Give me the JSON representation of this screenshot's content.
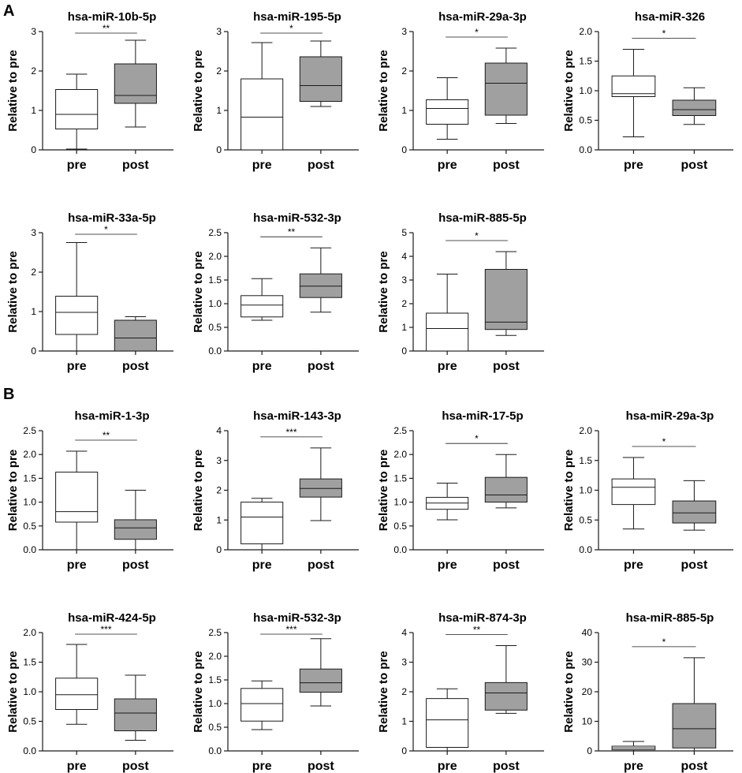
{
  "panels": [
    {
      "label": "A"
    },
    {
      "label": "B"
    }
  ],
  "chart_data": [
    {
      "type": "box",
      "panel": "A",
      "title": "hsa-miR-10b-5p",
      "ylabel": "Relative to pre",
      "categories": [
        "pre",
        "post"
      ],
      "ylim": [
        0,
        3
      ],
      "yticks": [
        "0",
        "1",
        "2",
        "3"
      ],
      "boxes": [
        {
          "name": "pre",
          "min": 0.02,
          "q1": 0.53,
          "median": 0.9,
          "q3": 1.53,
          "max": 1.92
        },
        {
          "name": "post",
          "min": 0.58,
          "q1": 1.18,
          "median": 1.38,
          "q3": 2.18,
          "max": 2.78
        }
      ],
      "significance": "**"
    },
    {
      "type": "box",
      "panel": "A",
      "title": "hsa-miR-195-5p",
      "ylabel": "Relative to pre",
      "categories": [
        "pre",
        "post"
      ],
      "ylim": [
        0,
        3
      ],
      "yticks": [
        "0",
        "1",
        "2",
        "3"
      ],
      "boxes": [
        {
          "name": "pre",
          "min": 0.0,
          "q1": 0.0,
          "median": 0.83,
          "q3": 1.8,
          "max": 2.72
        },
        {
          "name": "post",
          "min": 1.1,
          "q1": 1.23,
          "median": 1.63,
          "q3": 2.36,
          "max": 2.76
        }
      ],
      "significance": "*"
    },
    {
      "type": "box",
      "panel": "A",
      "title": "hsa-miR-29a-3p",
      "ylabel": "Relative to pre",
      "categories": [
        "pre",
        "post"
      ],
      "ylim": [
        0,
        3
      ],
      "yticks": [
        "0",
        "1",
        "2",
        "3"
      ],
      "boxes": [
        {
          "name": "pre",
          "min": 0.27,
          "q1": 0.65,
          "median": 1.05,
          "q3": 1.27,
          "max": 1.83
        },
        {
          "name": "post",
          "min": 0.67,
          "q1": 0.88,
          "median": 1.69,
          "q3": 2.2,
          "max": 2.58
        }
      ],
      "significance": "*"
    },
    {
      "type": "box",
      "panel": "A",
      "title": "hsa-miR-326",
      "ylabel": "Relative to pre",
      "categories": [
        "pre",
        "post"
      ],
      "ylim": [
        0,
        2
      ],
      "yticks": [
        "0.0",
        "0.5",
        "1.0",
        "1.5",
        "2.0"
      ],
      "boxes": [
        {
          "name": "pre",
          "min": 0.22,
          "q1": 0.9,
          "median": 0.95,
          "q3": 1.25,
          "max": 1.7
        },
        {
          "name": "post",
          "min": 0.43,
          "q1": 0.58,
          "median": 0.68,
          "q3": 0.84,
          "max": 1.05
        }
      ],
      "significance": "*"
    },
    {
      "type": "box",
      "panel": "A",
      "title": "hsa-miR-33a-5p",
      "ylabel": "Relative to pre",
      "categories": [
        "pre",
        "post"
      ],
      "ylim": [
        0,
        3
      ],
      "yticks": [
        "0",
        "1",
        "2",
        "3"
      ],
      "boxes": [
        {
          "name": "pre",
          "min": 0.0,
          "q1": 0.42,
          "median": 0.98,
          "q3": 1.39,
          "max": 2.75
        },
        {
          "name": "post",
          "min": 0.0,
          "q1": 0.0,
          "median": 0.33,
          "q3": 0.78,
          "max": 0.87
        }
      ],
      "significance": "*"
    },
    {
      "type": "box",
      "panel": "A",
      "title": "hsa-miR-532-3p",
      "ylabel": "Relative to pre",
      "categories": [
        "pre",
        "post"
      ],
      "ylim": [
        0,
        2.5
      ],
      "yticks": [
        "0.0",
        "0.5",
        "1.0",
        "1.5",
        "2.0",
        "2.5"
      ],
      "boxes": [
        {
          "name": "pre",
          "min": 0.65,
          "q1": 0.72,
          "median": 0.97,
          "q3": 1.17,
          "max": 1.53
        },
        {
          "name": "post",
          "min": 0.82,
          "q1": 1.13,
          "median": 1.37,
          "q3": 1.63,
          "max": 2.18
        }
      ],
      "significance": "**"
    },
    {
      "type": "box",
      "panel": "A",
      "title": "hsa-miR-885-5p",
      "ylabel": "Relative to pre",
      "categories": [
        "pre",
        "post"
      ],
      "ylim": [
        0,
        5
      ],
      "yticks": [
        "0",
        "1",
        "2",
        "3",
        "4",
        "5"
      ],
      "boxes": [
        {
          "name": "pre",
          "min": 0.0,
          "q1": 0.0,
          "median": 0.95,
          "q3": 1.6,
          "max": 3.25
        },
        {
          "name": "post",
          "min": 0.66,
          "q1": 0.91,
          "median": 1.22,
          "q3": 3.45,
          "max": 4.2
        }
      ],
      "significance": "*"
    },
    {
      "type": "box",
      "panel": "B",
      "title": "hsa-miR-1-3p",
      "ylabel": "Relative to pre",
      "categories": [
        "pre",
        "post"
      ],
      "ylim": [
        0,
        2.5
      ],
      "yticks": [
        "0.0",
        "0.5",
        "1.0",
        "1.5",
        "2.0",
        "2.5"
      ],
      "boxes": [
        {
          "name": "pre",
          "min": 0.0,
          "q1": 0.58,
          "median": 0.8,
          "q3": 1.63,
          "max": 2.07
        },
        {
          "name": "post",
          "min": 0.0,
          "q1": 0.22,
          "median": 0.46,
          "q3": 0.63,
          "max": 1.25
        }
      ],
      "significance": "**"
    },
    {
      "type": "box",
      "panel": "B",
      "title": "hsa-miR-143-3p",
      "ylabel": "Relative to pre",
      "categories": [
        "pre",
        "post"
      ],
      "ylim": [
        0,
        4
      ],
      "yticks": [
        "0",
        "1",
        "2",
        "3",
        "4"
      ],
      "boxes": [
        {
          "name": "pre",
          "min": 0.0,
          "q1": 0.2,
          "median": 1.1,
          "q3": 1.6,
          "max": 1.73
        },
        {
          "name": "post",
          "min": 0.98,
          "q1": 1.77,
          "median": 2.06,
          "q3": 2.38,
          "max": 3.42
        }
      ],
      "significance": "***"
    },
    {
      "type": "box",
      "panel": "B",
      "title": "hsa-miR-17-5p",
      "ylabel": "Relative to pre",
      "categories": [
        "pre",
        "post"
      ],
      "ylim": [
        0,
        2.5
      ],
      "yticks": [
        "0.0",
        "0.5",
        "1.0",
        "1.5",
        "2.0",
        "2.5"
      ],
      "boxes": [
        {
          "name": "pre",
          "min": 0.63,
          "q1": 0.85,
          "median": 0.98,
          "q3": 1.1,
          "max": 1.4
        },
        {
          "name": "post",
          "min": 0.88,
          "q1": 1.0,
          "median": 1.15,
          "q3": 1.52,
          "max": 2.0
        }
      ],
      "significance": "*"
    },
    {
      "type": "box",
      "panel": "B",
      "title": "hsa-miR-29a-3p",
      "ylabel": "Relative to pre",
      "categories": [
        "pre",
        "post"
      ],
      "ylim": [
        0,
        2
      ],
      "yticks": [
        "0.0",
        "0.5",
        "1.0",
        "1.5",
        "2.0"
      ],
      "boxes": [
        {
          "name": "pre",
          "min": 0.35,
          "q1": 0.76,
          "median": 1.05,
          "q3": 1.19,
          "max": 1.55
        },
        {
          "name": "post",
          "min": 0.33,
          "q1": 0.45,
          "median": 0.62,
          "q3": 0.82,
          "max": 1.16
        }
      ],
      "significance": "*"
    },
    {
      "type": "box",
      "panel": "B",
      "title": "hsa-miR-424-5p",
      "ylabel": "Relative to pre",
      "categories": [
        "pre",
        "post"
      ],
      "ylim": [
        0,
        2
      ],
      "yticks": [
        "0.0",
        "0.5",
        "1.0",
        "1.5",
        "2.0"
      ],
      "boxes": [
        {
          "name": "pre",
          "min": 0.45,
          "q1": 0.7,
          "median": 0.95,
          "q3": 1.23,
          "max": 1.8
        },
        {
          "name": "post",
          "min": 0.18,
          "q1": 0.34,
          "median": 0.64,
          "q3": 0.88,
          "max": 1.28
        }
      ],
      "significance": "***"
    },
    {
      "type": "box",
      "panel": "B",
      "title": "hsa-miR-532-3p",
      "ylabel": "Relative to pre",
      "categories": [
        "pre",
        "post"
      ],
      "ylim": [
        0,
        2.5
      ],
      "yticks": [
        "0.0",
        "0.5",
        "1.0",
        "1.5",
        "2.0",
        "2.5"
      ],
      "boxes": [
        {
          "name": "pre",
          "min": 0.45,
          "q1": 0.63,
          "median": 1.0,
          "q3": 1.32,
          "max": 1.48
        },
        {
          "name": "post",
          "min": 0.95,
          "q1": 1.24,
          "median": 1.44,
          "q3": 1.73,
          "max": 2.37
        }
      ],
      "significance": "***"
    },
    {
      "type": "box",
      "panel": "B",
      "title": "hsa-miR-874-3p",
      "ylabel": "Relative to pre",
      "categories": [
        "pre",
        "post"
      ],
      "ylim": [
        0,
        4
      ],
      "yticks": [
        "0",
        "1",
        "2",
        "3",
        "4"
      ],
      "boxes": [
        {
          "name": "pre",
          "min": 0.0,
          "q1": 0.12,
          "median": 1.05,
          "q3": 1.77,
          "max": 2.1
        },
        {
          "name": "post",
          "min": 1.27,
          "q1": 1.38,
          "median": 1.96,
          "q3": 2.31,
          "max": 3.56
        }
      ],
      "significance": "**"
    },
    {
      "type": "box",
      "panel": "B",
      "title": "hsa-miR-885-5p",
      "ylabel": "Relative to pre",
      "categories": [
        "pre",
        "post"
      ],
      "ylim": [
        0,
        40
      ],
      "yticks": [
        "0",
        "10",
        "20",
        "30",
        "40"
      ],
      "boxes": [
        {
          "name": "pre",
          "min": 0.0,
          "q1": 0.4,
          "median": 1.0,
          "q3": 1.6,
          "max": 3.2
        },
        {
          "name": "post",
          "min": 0.0,
          "q1": 1.0,
          "median": 7.5,
          "q3": 16.0,
          "max": 31.5
        }
      ],
      "significance": "*"
    }
  ],
  "colors": {
    "pre_fill": "#ffffff",
    "post_fill": "#a0a0a0",
    "line": "#1a1a1a"
  }
}
